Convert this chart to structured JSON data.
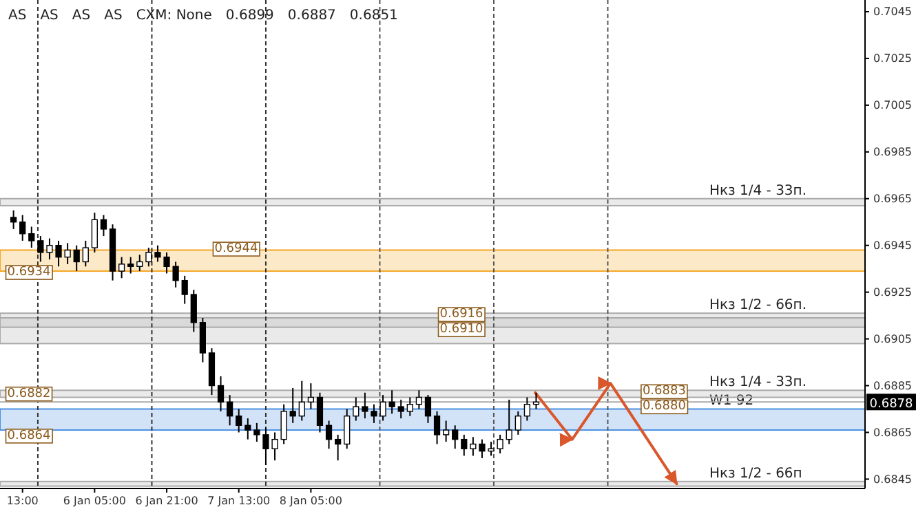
{
  "chart_data": {
    "type": "candlestick",
    "x": [
      "--01-05T11:00",
      "--01-05T13:00",
      "--01-05T15:00",
      "--01-05T17:00",
      "--01-05T19:00",
      "--01-05T21:00",
      "--01-05T23:00",
      "--01-06T01:00",
      "--01-06T03:00",
      "--01-06T05:00",
      "--01-06T07:00",
      "--01-06T09:00",
      "--01-06T11:00",
      "--01-06T13:00",
      "--01-06T15:00",
      "--01-06T17:00",
      "--01-06T19:00",
      "--01-06T21:00",
      "--01-06T23:00",
      "--01-07T01:00",
      "--01-07T03:00",
      "--01-07T05:00",
      "--01-07T07:00",
      "--01-07T09:00",
      "--01-07T11:00",
      "--01-07T13:00",
      "--01-07T15:00",
      "--01-07T17:00",
      "--01-07T19:00",
      "--01-07T21:00",
      "--01-07T23:00",
      "--01-08T01:00",
      "--01-08T03:00",
      "--01-08T05:00",
      "--01-08T07:00",
      "--01-08T09:00",
      "--01-08T11:00",
      "--01-08T13:00",
      "--01-08T15:00",
      "--01-08T17:00",
      "--01-08T19:00",
      "--01-08T21:00",
      "--01-08T23:00",
      "--01-09T01:00",
      "--01-09T03:00",
      "--01-09T05:00",
      "--01-09T07:00",
      "--01-09T09:00",
      "--01-09T11:00",
      "--01-09T13:00",
      "--01-09T15:00",
      "--01-09T17:00",
      "--01-09T19:00",
      "--01-09T21:00",
      "--01-09T23:00",
      "--01-10T01:00",
      "--01-10T03:00",
      "--01-10T05:00",
      "--01-10T07:00"
    ],
    "ohlc": [
      [
        0.6957,
        0.696,
        0.6952,
        0.6955
      ],
      [
        0.6955,
        0.6958,
        0.6947,
        0.695
      ],
      [
        0.695,
        0.6953,
        0.6944,
        0.6947
      ],
      [
        0.6947,
        0.6949,
        0.6938,
        0.6942
      ],
      [
        0.6942,
        0.6948,
        0.6939,
        0.6945
      ],
      [
        0.6945,
        0.6947,
        0.6936,
        0.694
      ],
      [
        0.694,
        0.6946,
        0.6937,
        0.6943
      ],
      [
        0.6943,
        0.6945,
        0.6934,
        0.6938
      ],
      [
        0.6938,
        0.6947,
        0.6936,
        0.6944
      ],
      [
        0.6944,
        0.6959,
        0.6942,
        0.6956
      ],
      [
        0.6956,
        0.6958,
        0.6949,
        0.6952
      ],
      [
        0.6952,
        0.6954,
        0.693,
        0.6934
      ],
      [
        0.6934,
        0.694,
        0.6931,
        0.6937
      ],
      [
        0.6937,
        0.694,
        0.6933,
        0.6936
      ],
      [
        0.6936,
        0.6941,
        0.6934,
        0.6938
      ],
      [
        0.6938,
        0.6944,
        0.6936,
        0.6942
      ],
      [
        0.6942,
        0.6945,
        0.6938,
        0.694
      ],
      [
        0.694,
        0.6942,
        0.6933,
        0.6936
      ],
      [
        0.6936,
        0.6938,
        0.6927,
        0.693
      ],
      [
        0.693,
        0.6932,
        0.692,
        0.6924
      ],
      [
        0.6924,
        0.6926,
        0.6908,
        0.6912
      ],
      [
        0.6912,
        0.6914,
        0.6895,
        0.6899
      ],
      [
        0.6899,
        0.6901,
        0.6881,
        0.6885
      ],
      [
        0.6885,
        0.6889,
        0.6874,
        0.6878
      ],
      [
        0.6878,
        0.6881,
        0.6868,
        0.6872
      ],
      [
        0.6872,
        0.6875,
        0.6865,
        0.6868
      ],
      [
        0.6868,
        0.6871,
        0.6862,
        0.6866
      ],
      [
        0.6866,
        0.6869,
        0.6861,
        0.6864
      ],
      [
        0.6864,
        0.6867,
        0.6851,
        0.6858
      ],
      [
        0.6858,
        0.6865,
        0.6853,
        0.6862
      ],
      [
        0.6862,
        0.6877,
        0.686,
        0.6874
      ],
      [
        0.6874,
        0.6884,
        0.6869,
        0.6872
      ],
      [
        0.6872,
        0.6887,
        0.687,
        0.6878
      ],
      [
        0.6878,
        0.6886,
        0.6875,
        0.688
      ],
      [
        0.688,
        0.6882,
        0.6865,
        0.6868
      ],
      [
        0.6868,
        0.687,
        0.6858,
        0.6862
      ],
      [
        0.6862,
        0.6864,
        0.6853,
        0.686
      ],
      [
        0.686,
        0.6875,
        0.6858,
        0.6872
      ],
      [
        0.6872,
        0.688,
        0.687,
        0.6876
      ],
      [
        0.6876,
        0.6882,
        0.6871,
        0.6874
      ],
      [
        0.6874,
        0.6877,
        0.6869,
        0.6872
      ],
      [
        0.6872,
        0.6881,
        0.687,
        0.6878
      ],
      [
        0.6878,
        0.6883,
        0.6873,
        0.6876
      ],
      [
        0.6876,
        0.6879,
        0.6871,
        0.6874
      ],
      [
        0.6874,
        0.688,
        0.6872,
        0.6877
      ],
      [
        0.6877,
        0.6883,
        0.6875,
        0.688
      ],
      [
        0.688,
        0.6881,
        0.6869,
        0.6872
      ],
      [
        0.6872,
        0.6874,
        0.686,
        0.6864
      ],
      [
        0.6864,
        0.687,
        0.6861,
        0.6866
      ],
      [
        0.6866,
        0.6868,
        0.6858,
        0.6862
      ],
      [
        0.6862,
        0.6864,
        0.6855,
        0.6858
      ],
      [
        0.6858,
        0.6863,
        0.6855,
        0.686
      ],
      [
        0.686,
        0.6862,
        0.6854,
        0.6857
      ],
      [
        0.6857,
        0.6861,
        0.6855,
        0.6858
      ],
      [
        0.6858,
        0.6864,
        0.6856,
        0.6862
      ],
      [
        0.6862,
        0.6879,
        0.686,
        0.6866
      ],
      [
        0.6866,
        0.6874,
        0.6864,
        0.6872
      ],
      [
        0.6872,
        0.688,
        0.687,
        0.6877
      ],
      [
        0.6877,
        0.6882,
        0.6875,
        0.6878
      ]
    ],
    "series": [
      {
        "type": "line",
        "x": [
          "--01-10T06:48",
          "--01-10T15:00",
          "--01-10T23:30",
          "--01-11T14:12"
        ],
        "values": [
          0.6882,
          0.6862,
          0.6886,
          0.6843
        ],
        "color": "#d9572b"
      }
    ],
    "xlim": [
      "--01-05T08:00",
      "--01-13T08:00"
    ],
    "ylim": [
      0.6841,
      0.705
    ],
    "xticks": [
      {
        "value": "--01-05T13:00",
        "label": "13:00"
      },
      {
        "value": "--01-06T05:00",
        "label": "6 Jan 05:00"
      },
      {
        "value": "--01-06T21:00",
        "label": "6 Jan 21:00"
      },
      {
        "value": "--01-07T13:00",
        "label": "7 Jan 13:00"
      },
      {
        "value": "--01-08T05:00",
        "label": "8 Jan 05:00"
      }
    ],
    "yticks": [
      0.6845,
      0.6865,
      0.6885,
      0.6905,
      0.6925,
      0.6945,
      0.6965,
      0.6985,
      0.7005,
      0.7025,
      0.7045
    ],
    "grid": false,
    "bands": [
      {
        "axis": "y",
        "from": 0.6934,
        "to": 0.6943,
        "color": "#f5a623"
      },
      {
        "axis": "y",
        "from": 0.6866,
        "to": 0.6875,
        "color": "#4a90e2",
        "label": "W1 92"
      },
      {
        "axis": "y",
        "from": 0.6903,
        "to": 0.6914,
        "color": "#aaaaaa"
      },
      {
        "axis": "y",
        "from": 0.691,
        "to": 0.6916,
        "color": "#aaaaaa",
        "label": "Нкз 1/2 - 66п."
      },
      {
        "axis": "y",
        "from": 0.688,
        "to": 0.6883,
        "color": "#aaaaaa",
        "label": "Нкз 1/4 - 33п."
      },
      {
        "axis": "y",
        "from": 0.6962,
        "to": 0.6965,
        "color": "#aaaaaa",
        "label": "Нкз 1/4 - 33п."
      },
      {
        "axis": "y",
        "from": 0.6842,
        "to": 0.6844,
        "color": "#aaaaaa",
        "label": "Нкз 1/2 - 66п"
      }
    ],
    "ref_lines": [
      {
        "axis": "x",
        "value": "--01-05T16:24",
        "color": "#333333",
        "line_style": "dashed"
      },
      {
        "axis": "x",
        "value": "--01-06T17:42",
        "color": "#333333",
        "line_style": "dashed"
      },
      {
        "axis": "x",
        "value": "--01-07T19:00",
        "color": "#333333",
        "line_style": "dashed"
      },
      {
        "axis": "x",
        "value": "--01-08T20:18",
        "color": "#555555",
        "line_style": "dashed"
      },
      {
        "axis": "x",
        "value": "--01-09T21:36",
        "color": "#555555",
        "line_style": "dashed"
      },
      {
        "axis": "x",
        "value": "--01-10T22:54",
        "color": "#555555",
        "line_style": "dashed"
      },
      {
        "axis": "y",
        "value": 0.6878,
        "label": "0.6878",
        "color": "#aaaaaa",
        "line_style": "solid"
      }
    ],
    "annotations": [
      "AS",
      "AS",
      "AS",
      "AS",
      "CXM: None",
      {
        "text": "0.6934",
        "x": "--01-05T09:00",
        "y": 0.6934
      },
      {
        "text": "0.6944",
        "x": "--01-07T07:00",
        "y": 0.6944
      },
      "0.6899",
      "0.6887",
      "0.6851",
      {
        "text": "0.6882",
        "x": "--01-05T09:00",
        "y": 0.6882
      },
      {
        "text": "0.6864",
        "x": "--01-05T09:00",
        "y": 0.6864
      },
      {
        "text": "0.6916",
        "x": "--01-09T09:00",
        "y": 0.6916
      },
      {
        "text": "0.6910",
        "x": "--01-09T09:00",
        "y": 0.691
      },
      {
        "text": "0.6883",
        "x": "--01-11T06:00",
        "y": 0.6883
      },
      {
        "text": "0.6880",
        "x": "--01-11T06:00",
        "y": 0.688
      }
    ]
  }
}
